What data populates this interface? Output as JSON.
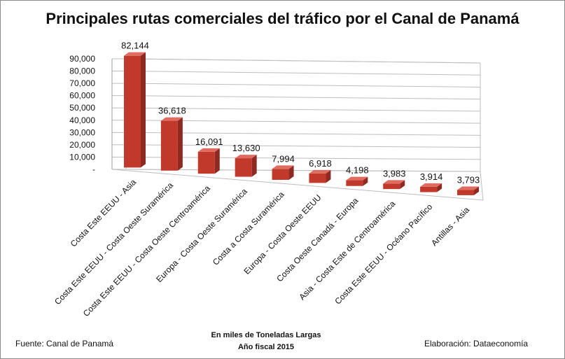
{
  "chart_data": {
    "type": "bar",
    "title": "Principales rutas comerciales del tráfico por el Canal de Panamá",
    "categories": [
      "Costa Este EEUU - Asia",
      "Costa Este EEUU - Costa Oeste Suramérica",
      "Costa Este EEUU - Costa Oeste Centroamérica",
      "Europa - Costa Oeste Suramérica",
      "Costa a Costa Suramérica",
      "Europa - Costa Oeste EEUU",
      "Costa Oeste Canadá - Europa",
      "Asia - Costa Este de Centroamérica",
      "Costa Este EEUU - Océano Pacífico",
      "Antillas - Asia"
    ],
    "values": [
      82144,
      36618,
      16091,
      13630,
      7994,
      6918,
      4198,
      3983,
      3914,
      3793
    ],
    "value_labels": [
      "82,144",
      "36,618",
      "16,091",
      "13,630",
      "7,994",
      "6,918",
      "4,198",
      "3,983",
      "3,914",
      "3,793"
    ],
    "y_ticks": [
      "-",
      "10,000",
      "20,000",
      "30,000",
      "40,000",
      "50,000",
      "60,000",
      "70,000",
      "80,000",
      "90,000"
    ],
    "ylim": [
      0,
      90000
    ],
    "grid": true,
    "bar_color": "#c0392b",
    "bar_color_top": "#e06b60",
    "bar_color_side": "#8e2a22"
  },
  "footer": {
    "source": "Fuente:  Canal de Panamá",
    "units": "En miles de Toneladas Largas",
    "year": "Año fiscal 2015",
    "credit": "Elaboración: Dataeconomía"
  }
}
